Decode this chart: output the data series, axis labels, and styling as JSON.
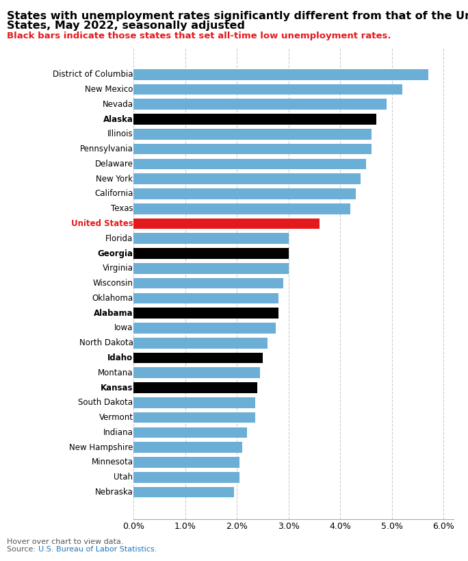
{
  "title_line1": "States with unemployment rates significantly different from that of the United",
  "title_line2": "States, May 2022, seasonally adjusted",
  "subtitle": "Black bars indicate those states that set all-time low unemployment rates.",
  "states": [
    "District of Columbia",
    "New Mexico",
    "Nevada",
    "Alaska",
    "Illinois",
    "Pennsylvania",
    "Delaware",
    "New York",
    "California",
    "Texas",
    "United States",
    "Florida",
    "Georgia",
    "Virginia",
    "Wisconsin",
    "Oklahoma",
    "Alabama",
    "Iowa",
    "North Dakota",
    "Idaho",
    "Montana",
    "Kansas",
    "South Dakota",
    "Vermont",
    "Indiana",
    "New Hampshire",
    "Minnesota",
    "Utah",
    "Nebraska"
  ],
  "values": [
    0.057,
    0.052,
    0.049,
    0.047,
    0.046,
    0.046,
    0.045,
    0.044,
    0.043,
    0.042,
    0.036,
    0.03,
    0.03,
    0.03,
    0.029,
    0.028,
    0.028,
    0.0275,
    0.026,
    0.025,
    0.0245,
    0.024,
    0.0235,
    0.0235,
    0.022,
    0.021,
    0.0205,
    0.0205,
    0.0195
  ],
  "bar_colors": [
    "#6baed6",
    "#6baed6",
    "#6baed6",
    "#000000",
    "#6baed6",
    "#6baed6",
    "#6baed6",
    "#6baed6",
    "#6baed6",
    "#6baed6",
    "#e31a1c",
    "#6baed6",
    "#000000",
    "#6baed6",
    "#6baed6",
    "#6baed6",
    "#000000",
    "#6baed6",
    "#6baed6",
    "#000000",
    "#6baed6",
    "#000000",
    "#6baed6",
    "#6baed6",
    "#6baed6",
    "#6baed6",
    "#6baed6",
    "#6baed6",
    "#6baed6"
  ],
  "bold_labels": [
    "Alaska",
    "Georgia",
    "Alabama",
    "Idaho",
    "Kansas",
    "United States"
  ],
  "red_labels": [
    "United States"
  ],
  "xlim": [
    0,
    0.062
  ],
  "xticks": [
    0.0,
    0.01,
    0.02,
    0.03,
    0.04,
    0.05,
    0.06
  ],
  "xtick_labels": [
    "0.0%",
    "1.0%",
    "2.0%",
    "3.0%",
    "4.0%",
    "5.0%",
    "6.0%"
  ],
  "footer_note": "Hover over chart to view data.",
  "source_link_color": "#1a75bc",
  "background_color": "#ffffff",
  "bar_height": 0.72,
  "title_fontsize": 11.5,
  "subtitle_fontsize": 9.5,
  "label_fontsize": 8.5,
  "tick_fontsize": 9
}
